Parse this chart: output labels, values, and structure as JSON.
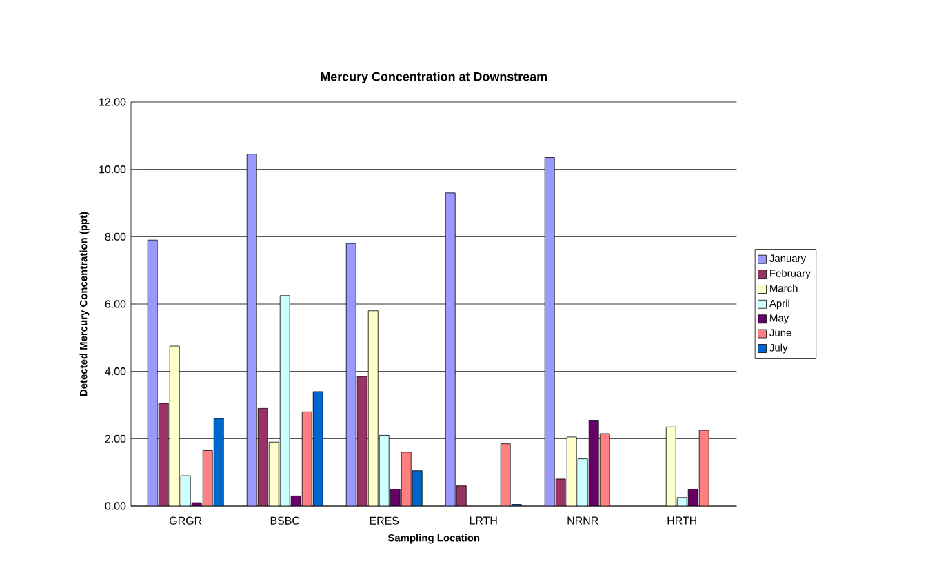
{
  "chart_data": {
    "type": "bar",
    "title": "Mercury Concentration at Downstream",
    "xlabel": "Sampling Location",
    "ylabel": "Detected Mercury Concentration (ppt)",
    "categories": [
      "GRGR",
      "BSBC",
      "ERES",
      "LRTH",
      "NRNR",
      "HRTH"
    ],
    "series": [
      {
        "name": "January",
        "color": "#9999ff",
        "values": [
          7.9,
          10.45,
          7.8,
          9.3,
          10.35,
          null
        ]
      },
      {
        "name": "February",
        "color": "#993366",
        "values": [
          3.05,
          2.9,
          3.85,
          0.6,
          0.8,
          null
        ]
      },
      {
        "name": "March",
        "color": "#ffffcc",
        "values": [
          4.75,
          1.9,
          5.8,
          null,
          2.05,
          2.35
        ]
      },
      {
        "name": "April",
        "color": "#ccffff",
        "values": [
          0.9,
          6.25,
          2.1,
          null,
          1.4,
          0.25
        ]
      },
      {
        "name": "May",
        "color": "#660066",
        "values": [
          0.1,
          0.3,
          0.5,
          null,
          2.55,
          0.5
        ]
      },
      {
        "name": "June",
        "color": "#ff8080",
        "values": [
          1.65,
          2.8,
          1.6,
          1.85,
          2.15,
          2.25
        ]
      },
      {
        "name": "July",
        "color": "#0066cc",
        "values": [
          2.6,
          3.4,
          1.05,
          0.05,
          null,
          null
        ]
      }
    ],
    "ylim": [
      0,
      12
    ],
    "yticks": [
      {
        "value": 0,
        "label": "0.00"
      },
      {
        "value": 2,
        "label": "2.00"
      },
      {
        "value": 4,
        "label": "4.00"
      },
      {
        "value": 6,
        "label": "6.00"
      },
      {
        "value": 8,
        "label": "8.00"
      },
      {
        "value": 10,
        "label": "10.00"
      },
      {
        "value": 12,
        "label": "12.00"
      }
    ],
    "grid": "y",
    "legend": "right"
  }
}
